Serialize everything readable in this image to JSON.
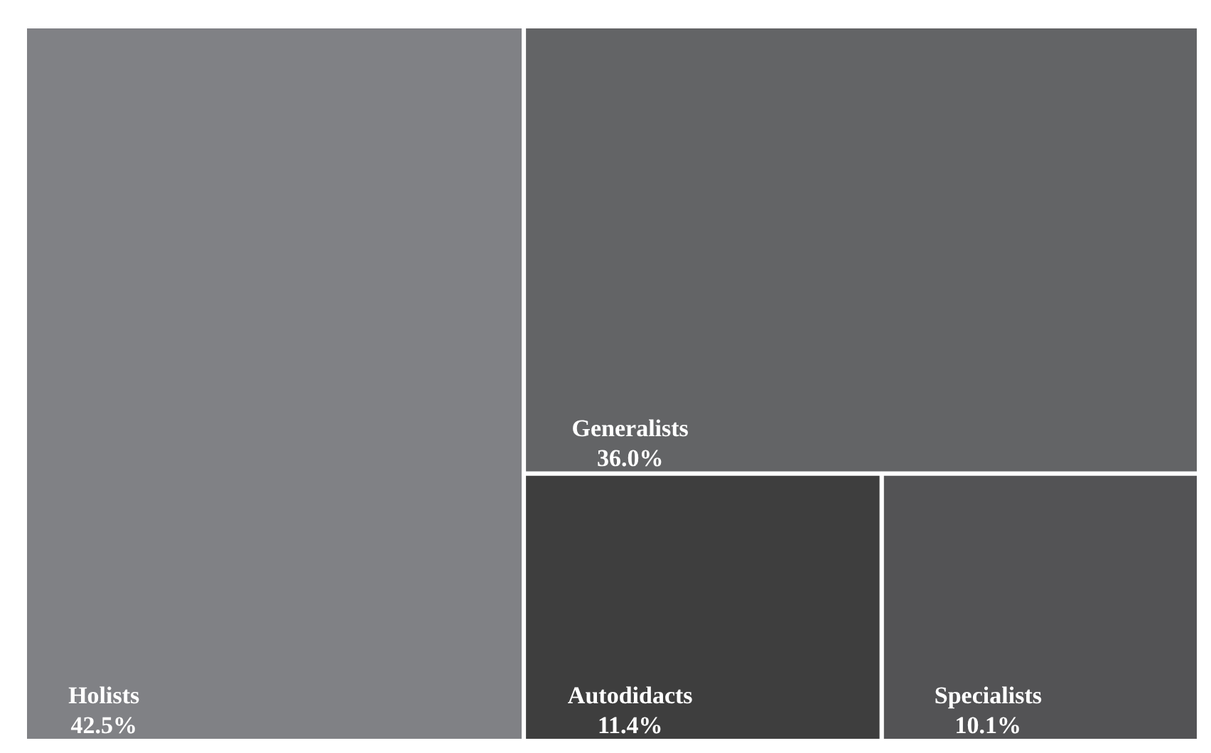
{
  "chart_data": {
    "type": "other",
    "categories": [
      "Holists",
      "Generalists",
      "Autodidacts",
      "Specialists"
    ],
    "values": [
      42.5,
      36.0,
      11.4,
      10.1
    ],
    "value_labels": [
      "42.5%",
      "36.0%",
      "11.4%",
      "10.1%"
    ],
    "colors": [
      "#808185",
      "#636466",
      "#3e3e3e",
      "#535355"
    ]
  }
}
